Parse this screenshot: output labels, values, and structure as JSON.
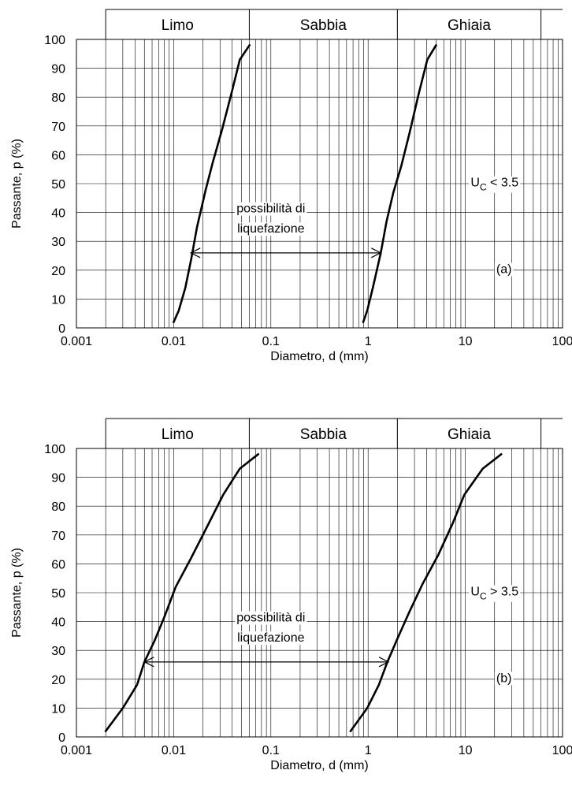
{
  "chart_data": [
    {
      "type": "line",
      "x_scale": "log",
      "xlim": [
        0.001,
        100
      ],
      "ylim": [
        0,
        100
      ],
      "grid": true,
      "xlabel": "Diametro, d (mm)",
      "ylabel": "Passante, p (%)",
      "x_ticks": [
        "0.001",
        "0.01",
        "0.1",
        "1",
        "10",
        "100"
      ],
      "y_ticks": [
        "0",
        "10",
        "20",
        "30",
        "40",
        "50",
        "60",
        "70",
        "80",
        "90",
        "100"
      ],
      "bands": [
        {
          "label": "Limo",
          "from": 0.002,
          "to": 0.06
        },
        {
          "label": "Sabbia",
          "from": 0.06,
          "to": 2
        },
        {
          "label": "Ghiaia",
          "from": 2,
          "to": 60
        }
      ],
      "series": [
        {
          "x": [
            0.01,
            0.0113,
            0.0132,
            0.0152,
            0.0174,
            0.0214,
            0.0251,
            0.0316,
            0.0398,
            0.0479,
            0.0603
          ],
          "y": [
            2,
            6,
            14,
            24,
            35,
            48,
            57,
            69,
            82,
            93,
            98
          ]
        },
        {
          "x": [
            0.89,
            0.98,
            1.12,
            1.35,
            1.55,
            1.82,
            2.19,
            2.69,
            3.31,
            4.07,
            5.0
          ],
          "y": [
            2,
            6,
            14,
            26,
            37,
            47,
            56,
            68,
            81,
            93,
            98
          ]
        }
      ],
      "annotations": [
        {
          "text": "possibilità di",
          "x": 0.1,
          "y": 40
        },
        {
          "text": "liquefazione",
          "x": 0.1,
          "y": 33
        },
        {
          "text": "(a)",
          "x": 25,
          "y": 19
        }
      ],
      "arrow": {
        "x_from": 0.015,
        "x_to": 1.35,
        "y": 26
      },
      "uc_label": {
        "base": "U",
        "sub": "C",
        "rest": " < 3.5",
        "x": 20,
        "y": 49
      }
    },
    {
      "type": "line",
      "x_scale": "log",
      "xlim": [
        0.001,
        100
      ],
      "ylim": [
        0,
        100
      ],
      "grid": true,
      "xlabel": "Diametro, d (mm)",
      "ylabel": "Passante, p (%)",
      "x_ticks": [
        "0.001",
        "0.01",
        "0.1",
        "1",
        "10",
        "100"
      ],
      "y_ticks": [
        "0",
        "10",
        "20",
        "30",
        "40",
        "50",
        "60",
        "70",
        "80",
        "90",
        "100"
      ],
      "bands": [
        {
          "label": "Limo",
          "from": 0.002,
          "to": 0.06
        },
        {
          "label": "Sabbia",
          "from": 0.06,
          "to": 2
        },
        {
          "label": "Ghiaia",
          "from": 2,
          "to": 60
        }
      ],
      "series": [
        {
          "x": [
            0.002,
            0.003,
            0.0042,
            0.005,
            0.0063,
            0.0079,
            0.0105,
            0.0151,
            0.0214,
            0.0324,
            0.0479,
            0.0741
          ],
          "y": [
            2,
            10,
            18,
            26,
            33,
            41,
            52,
            62,
            72,
            84,
            93,
            98
          ]
        },
        {
          "x": [
            0.66,
            0.98,
            1.29,
            1.58,
            2.0,
            2.63,
            3.63,
            5.25,
            7.41,
            9.77,
            15.1,
            23.4
          ],
          "y": [
            2,
            10,
            18,
            26,
            34,
            43,
            53,
            63,
            74,
            84,
            93,
            98
          ]
        }
      ],
      "annotations": [
        {
          "text": "possibilità di",
          "x": 0.1,
          "y": 40
        },
        {
          "text": "liquefazione",
          "x": 0.1,
          "y": 33
        },
        {
          "text": "(b)",
          "x": 25,
          "y": 19
        }
      ],
      "arrow": {
        "x_from": 0.005,
        "x_to": 1.62,
        "y": 26
      },
      "uc_label": {
        "base": "U",
        "sub": "C",
        "rest": " > 3.5",
        "x": 20,
        "y": 49
      }
    }
  ]
}
